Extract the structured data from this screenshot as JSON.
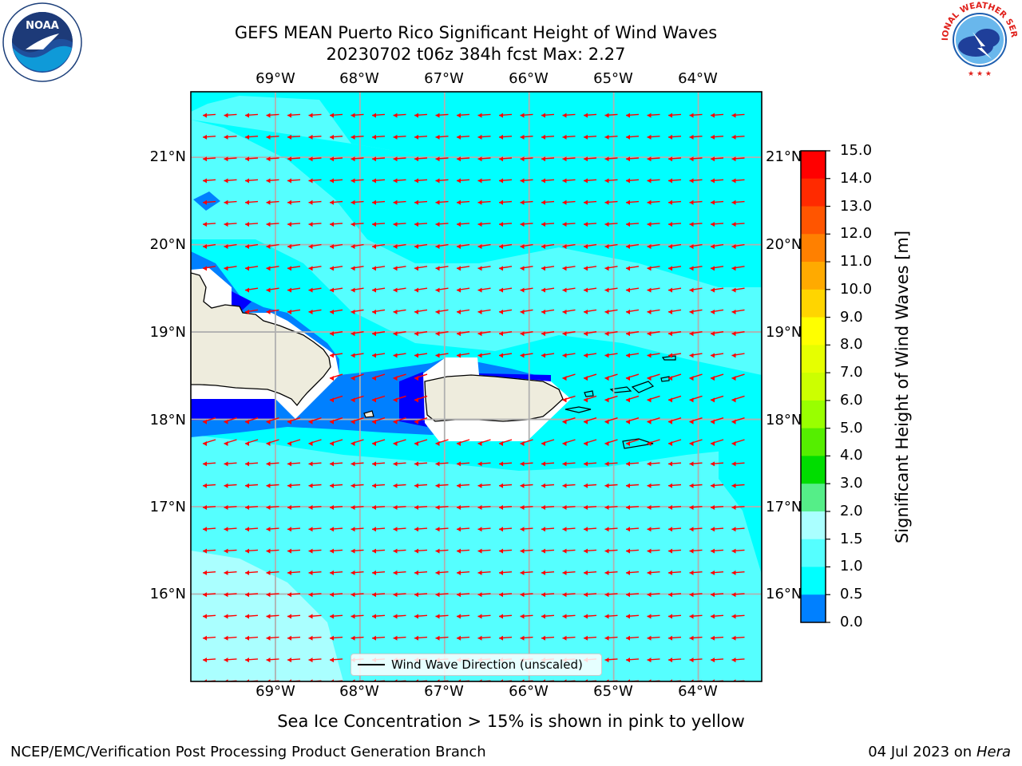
{
  "header": {
    "title_line1": "GEFS MEAN Puerto Rico Significant Height of Wind Waves",
    "title_line2": "20230702 t06z 384h fcst   Max: 2.27"
  },
  "logos": {
    "left": "NOAA",
    "right": "NATIONAL WEATHER SERVICE"
  },
  "map": {
    "lon_labels": [
      "69°W",
      "68°W",
      "67°W",
      "66°W",
      "65°W",
      "64°W"
    ],
    "lat_labels": [
      "21°N",
      "20°N",
      "19°N",
      "18°N",
      "17°N",
      "16°N"
    ],
    "lon_range": [
      -70.0,
      -63.25
    ],
    "lat_range": [
      15.0,
      21.75
    ],
    "arrow_color": "#ff0000",
    "land_color": "#eeecdd",
    "legend_label": "Wind Wave Direction (unscaled)"
  },
  "colorbar": {
    "label": "Significant Height of Wind Waves [m]",
    "ticks": [
      "15.0",
      "14.0",
      "13.0",
      "12.0",
      "11.0",
      "10.0",
      "9.0",
      "8.0",
      "7.0",
      "6.0",
      "5.0",
      "4.0",
      "3.0",
      "2.0",
      "1.5",
      "1.0",
      "0.5",
      "0.0"
    ],
    "colors_top_to_bottom": [
      "#ff0000",
      "#ff2a00",
      "#ff5500",
      "#ff8000",
      "#ffaa00",
      "#ffd500",
      "#ffff00",
      "#e6ff00",
      "#ccff00",
      "#99ff00",
      "#55ee00",
      "#00dd00",
      "#55ee88",
      "#aaffff",
      "#55ffff",
      "#00ffff",
      "#0080ff",
      "#0000ff"
    ]
  },
  "footer": {
    "note": "Sea Ice Concentration > 15% is shown in pink to yellow",
    "credit": "NCEP/EMC/Verification Post Processing Product Generation Branch",
    "date_text": "04 Jul 2023 on ",
    "machine": "Hera"
  }
}
